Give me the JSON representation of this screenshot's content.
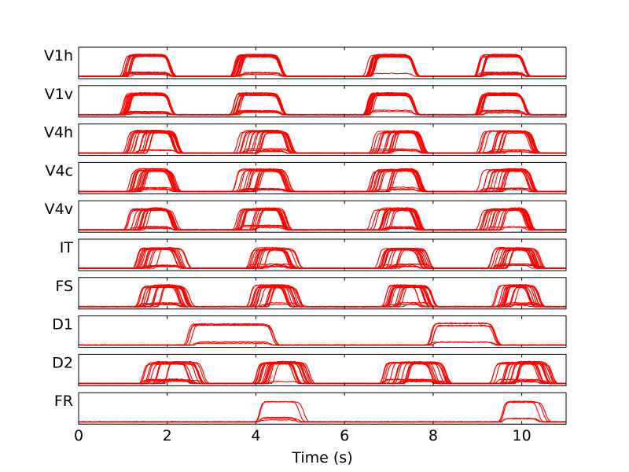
{
  "chart_data": {
    "type": "line",
    "title": "",
    "xlabel": "Time (s)",
    "ylabel": "",
    "xlim": [
      0,
      11
    ],
    "ylim": [
      0,
      1
    ],
    "x_ticks": [
      0,
      2,
      4,
      6,
      8,
      10
    ],
    "x_tick_labels": [
      "0",
      "2",
      "4",
      "6",
      "8",
      "10"
    ],
    "grid": false,
    "legend": "none",
    "series_color": "#ff0000",
    "panels": [
      {
        "name": "V1h",
        "traces": 18,
        "windows": [
          [
            1.0,
            2.05
          ],
          [
            3.5,
            4.55
          ],
          [
            6.5,
            7.55
          ],
          [
            9.0,
            10.05
          ]
        ],
        "onset_spread": 0.35,
        "offset_spread": 0.05,
        "peak": 0.85
      },
      {
        "name": "V1v",
        "traces": 18,
        "windows": [
          [
            1.0,
            2.05
          ],
          [
            3.5,
            4.55
          ],
          [
            6.5,
            7.55
          ],
          [
            9.0,
            10.05
          ]
        ],
        "onset_spread": 0.3,
        "offset_spread": 0.05,
        "peak": 0.85
      },
      {
        "name": "V4h",
        "traces": 18,
        "windows": [
          [
            1.05,
            2.15
          ],
          [
            3.55,
            4.7
          ],
          [
            6.55,
            7.7
          ],
          [
            9.05,
            10.2
          ]
        ],
        "onset_spread": 1.0,
        "offset_spread": 0.15,
        "peak": 0.88
      },
      {
        "name": "V4c",
        "traces": 18,
        "windows": [
          [
            1.05,
            2.1
          ],
          [
            3.55,
            4.65
          ],
          [
            6.55,
            7.65
          ],
          [
            9.05,
            10.15
          ]
        ],
        "onset_spread": 1.0,
        "offset_spread": 0.15,
        "peak": 0.88
      },
      {
        "name": "V4v",
        "traces": 18,
        "windows": [
          [
            1.05,
            2.1
          ],
          [
            3.55,
            4.6
          ],
          [
            6.55,
            7.6
          ],
          [
            9.05,
            10.1
          ]
        ],
        "onset_spread": 1.0,
        "offset_spread": 0.15,
        "peak": 0.85
      },
      {
        "name": "IT",
        "traces": 18,
        "windows": [
          [
            1.3,
            2.25
          ],
          [
            3.8,
            4.75
          ],
          [
            6.75,
            7.75
          ],
          [
            9.3,
            10.25
          ]
        ],
        "onset_spread": 1.0,
        "offset_spread": 0.3,
        "peak": 0.8
      },
      {
        "name": "FS",
        "traces": 18,
        "windows": [
          [
            1.35,
            2.3
          ],
          [
            3.85,
            4.75
          ],
          [
            6.85,
            7.75
          ],
          [
            9.35,
            10.25
          ]
        ],
        "onset_spread": 1.1,
        "offset_spread": 0.35,
        "peak": 0.85
      },
      {
        "name": "D1",
        "traces": 6,
        "windows": [
          [
            2.45,
            4.35
          ],
          [
            7.85,
            9.35
          ]
        ],
        "onset_spread": 0.2,
        "offset_spread": 0.1,
        "peak": 0.85
      },
      {
        "name": "D2",
        "traces": 18,
        "windows": [
          [
            1.35,
            2.55
          ],
          [
            3.95,
            4.95
          ],
          [
            6.85,
            8.05
          ],
          [
            9.35,
            10.45
          ]
        ],
        "onset_spread": 1.0,
        "offset_spread": 0.4,
        "peak": 0.85
      },
      {
        "name": "FR",
        "traces": 5,
        "windows": [
          [
            4.05,
            4.95
          ],
          [
            9.55,
            10.4
          ]
        ],
        "onset_spread": 0.1,
        "offset_spread": 0.2,
        "peak": 0.8
      }
    ]
  }
}
